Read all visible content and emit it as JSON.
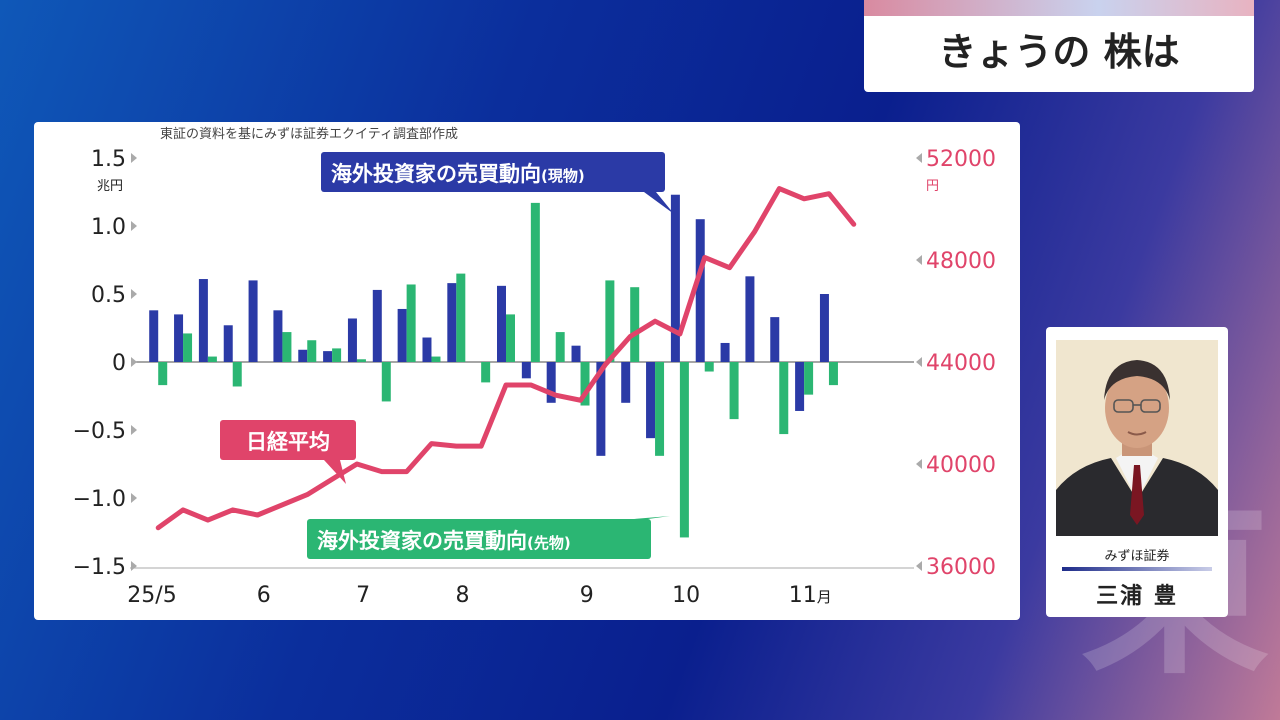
{
  "background_mark": "東",
  "headline": {
    "title": "きょうの 株は"
  },
  "chart_data": {
    "type": "bar+line",
    "source_note": "東証の資料を基にみずほ証券エクイティ調査部作成",
    "left_axis": {
      "unit": "兆円",
      "ylim": [
        -1.5,
        1.5
      ],
      "ticks": [
        "1.5",
        "1.0",
        "0.5",
        "0",
        "−0.5",
        "−1.0",
        "−1.5"
      ],
      "tick_values": [
        1.5,
        1.0,
        0.5,
        0,
        -0.5,
        -1.0,
        -1.5
      ]
    },
    "right_axis": {
      "unit": "円",
      "ylim": [
        36000,
        52000
      ],
      "ticks": [
        "52000",
        "48000",
        "44000",
        "40000",
        "36000"
      ],
      "tick_values": [
        52000,
        48000,
        44000,
        40000,
        36000
      ]
    },
    "x_axis": {
      "ticks": [
        {
          "label": "25/5",
          "week": 0
        },
        {
          "label": "6",
          "week": 4.5
        },
        {
          "label": "7",
          "week": 8.5
        },
        {
          "label": "8",
          "week": 12.5
        },
        {
          "label": "9",
          "week": 17.5
        },
        {
          "label": "10",
          "week": 21.5
        },
        {
          "label": "11",
          "week": 26.5
        }
      ],
      "last_tick_suffix": "月"
    },
    "weeks": 29,
    "series": [
      {
        "name": "海外投資家の売買動向(現物)",
        "color": "#2b3aa6",
        "values": [
          0.38,
          0.35,
          0.61,
          0.27,
          0.6,
          0.38,
          0.09,
          0.08,
          0.32,
          0.53,
          0.39,
          0.18,
          0.58,
          0.0,
          0.56,
          -0.12,
          -0.3,
          0.12,
          -0.69,
          -0.3,
          -0.56,
          1.23,
          1.05,
          0.14,
          0.63,
          0.33,
          -0.36,
          0.5,
          0.0
        ]
      },
      {
        "name": "海外投資家の売買動向(先物)",
        "color": "#2bb673",
        "values": [
          -0.17,
          0.21,
          0.04,
          -0.18,
          0.0,
          0.22,
          0.16,
          0.1,
          0.02,
          -0.29,
          0.57,
          0.04,
          0.65,
          -0.15,
          0.35,
          1.17,
          0.22,
          -0.32,
          0.6,
          0.55,
          -0.69,
          -1.29,
          -0.07,
          -0.42,
          0.0,
          -0.53,
          -0.24,
          -0.17,
          0.0
        ]
      },
      {
        "name": "日経平均",
        "color": "#e0446a",
        "type": "line",
        "values": [
          37500,
          38200,
          37800,
          38200,
          38000,
          38400,
          38800,
          39400,
          40000,
          39700,
          39700,
          40800,
          40700,
          40700,
          43100,
          43100,
          42700,
          42500,
          43900,
          45000,
          45600,
          45100,
          48100,
          47700,
          49100,
          50800,
          50400,
          50600,
          49400
        ]
      }
    ],
    "annotations": [
      {
        "text": "海外投資家の売買動向",
        "suffix": "(現物)",
        "series": 0
      },
      {
        "text": "海外投資家の売買動向",
        "suffix": "(先物)",
        "series": 1
      },
      {
        "text": "日経平均",
        "series": 2
      }
    ]
  },
  "commentator": {
    "company": "みずほ証券",
    "name": "三浦 豊"
  }
}
